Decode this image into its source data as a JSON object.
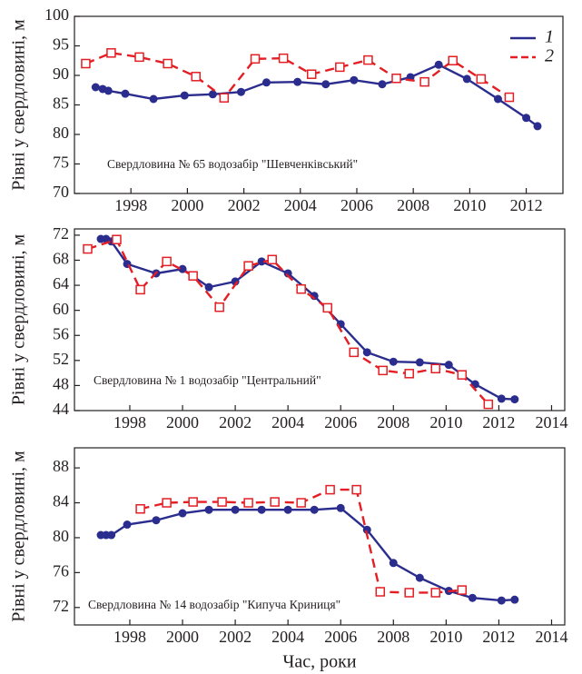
{
  "chart_data": [
    {
      "type": "line",
      "ylabel": "Рівні у свердловині, м",
      "annotation": "Свердловина № 65 водозабір \"Шевченківський\"",
      "xlim": [
        1996,
        2013.3
      ],
      "xticks": [
        1998,
        2000,
        2002,
        2004,
        2006,
        2008,
        2010,
        2012
      ],
      "ylim": [
        70,
        100
      ],
      "yticks": [
        70,
        75,
        80,
        85,
        90,
        95,
        100
      ],
      "legend": "upper right",
      "series": [
        {
          "name": "1",
          "color": "#2b2d8e",
          "line_style": "solid",
          "marker": "circle",
          "x": [
            1996.75,
            1997.0,
            1997.2,
            1997.8,
            1998.8,
            1999.9,
            2000.9,
            2001.9,
            2002.8,
            2003.9,
            2004.9,
            2005.9,
            2006.9,
            2007.9,
            2008.9,
            2009.9,
            2011.0,
            2012.0,
            2012.4
          ],
          "values": [
            88.0,
            87.7,
            87.4,
            86.9,
            86.0,
            86.6,
            86.8,
            87.2,
            88.8,
            88.9,
            88.5,
            89.2,
            88.5,
            89.7,
            91.8,
            89.4,
            86.0,
            82.8,
            81.4
          ]
        },
        {
          "name": "2",
          "color": "#e31e24",
          "line_style": "dashed",
          "marker": "square",
          "x": [
            1996.4,
            1997.3,
            1998.3,
            1999.3,
            2000.3,
            2001.3,
            2002.4,
            2003.4,
            2004.4,
            2005.4,
            2006.4,
            2007.4,
            2008.4,
            2009.4,
            2010.4,
            2011.4
          ],
          "values": [
            92.0,
            93.8,
            93.1,
            92.0,
            89.8,
            86.2,
            92.8,
            92.9,
            90.2,
            91.4,
            92.6,
            89.5,
            88.9,
            92.5,
            89.4,
            86.3
          ]
        }
      ]
    },
    {
      "type": "line",
      "ylabel": "Рівні у свердловині, м",
      "annotation": "Свердловина № 1 водозабір \"Центральний\"",
      "xlim": [
        1995.9,
        2014.5
      ],
      "xticks": [
        1998,
        2000,
        2002,
        2004,
        2006,
        2008,
        2010,
        2012,
        2014
      ],
      "ylim": [
        44,
        73
      ],
      "yticks": [
        44,
        48,
        52,
        56,
        60,
        64,
        68,
        72
      ],
      "series": [
        {
          "color": "#2b2d8e",
          "line_style": "solid",
          "marker": "circle",
          "x": [
            1996.9,
            1997.1,
            1997.3,
            1997.9,
            1999.0,
            2000.0,
            2001.0,
            2002.0,
            2003.0,
            2004.0,
            2005.0,
            2006.0,
            2007.0,
            2008.0,
            2009.0,
            2010.1,
            2011.1,
            2012.1,
            2012.6
          ],
          "values": [
            71.4,
            71.4,
            71.0,
            67.4,
            65.9,
            66.6,
            63.7,
            64.6,
            67.8,
            65.9,
            62.3,
            57.8,
            53.3,
            51.8,
            51.7,
            51.3,
            48.2,
            45.9,
            45.8
          ]
        },
        {
          "color": "#e31e24",
          "line_style": "dashed",
          "marker": "square",
          "x": [
            1996.4,
            1997.5,
            1998.4,
            1999.4,
            2000.4,
            2001.4,
            2002.5,
            2003.4,
            2004.5,
            2005.5,
            2006.5,
            2007.6,
            2008.6,
            2009.6,
            2010.6,
            2011.6
          ],
          "values": [
            69.8,
            71.3,
            63.3,
            67.8,
            65.5,
            60.5,
            67.1,
            68.1,
            63.4,
            60.4,
            53.3,
            50.4,
            49.9,
            50.7,
            49.7,
            45.0
          ]
        }
      ]
    },
    {
      "type": "line",
      "ylabel": "Рівні у свердловині, м",
      "xlabel": "Час, роки",
      "annotation": "Свердловина № 14 водозабір \"Кипуча Криниця\"",
      "xlim": [
        1995.9,
        2014.5
      ],
      "xticks": [
        1998,
        2000,
        2002,
        2004,
        2006,
        2008,
        2010,
        2012,
        2014
      ],
      "ylim": [
        70,
        90.3
      ],
      "yticks": [
        72,
        76,
        80,
        84,
        88
      ],
      "series": [
        {
          "color": "#2b2d8e",
          "line_style": "solid",
          "marker": "circle",
          "x": [
            1996.9,
            1997.1,
            1997.3,
            1997.9,
            1999.0,
            2000.0,
            2001.0,
            2002.0,
            2003.0,
            2004.0,
            2005.0,
            2006.0,
            2007.0,
            2008.0,
            2009.0,
            2010.1,
            2011.0,
            2012.1,
            2012.6
          ],
          "values": [
            80.3,
            80.3,
            80.3,
            81.5,
            82.0,
            82.8,
            83.2,
            83.2,
            83.2,
            83.2,
            83.2,
            83.4,
            80.9,
            77.1,
            75.4,
            73.9,
            73.1,
            72.8,
            72.9
          ]
        },
        {
          "color": "#e31e24",
          "line_style": "dashed",
          "marker": "square",
          "x": [
            1998.4,
            1999.4,
            2000.4,
            2001.5,
            2002.5,
            2003.5,
            2004.5,
            2005.6,
            2006.6,
            2007.5,
            2008.6,
            2009.6,
            2010.6
          ],
          "values": [
            83.3,
            84.0,
            84.1,
            84.1,
            84.0,
            84.1,
            84.0,
            85.5,
            85.5,
            73.8,
            73.7,
            73.7,
            74.0
          ]
        }
      ]
    }
  ]
}
